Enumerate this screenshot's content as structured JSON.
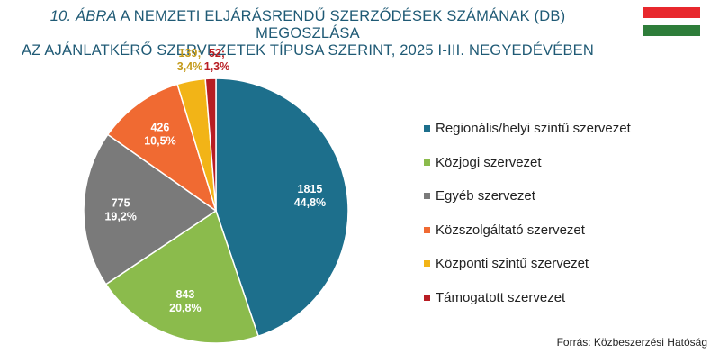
{
  "header": {
    "title_num": "10. ÁBRA",
    "title_line1_rest": " A NEMZETI ELJÁRÁSRENDŰ SZERZŐDÉSEK SZÁMÁNAK (DB) MEGOSZLÁSA",
    "title_line2": "AZ AJÁNLATKÉRŐ SZERVEZETEK TÍPUSA SZERINT, 2025 I-III. NEGYEDÉVÉBEN"
  },
  "flag": {
    "colors": [
      "#e8282d",
      "#ffffff",
      "#2e7d3a"
    ]
  },
  "chart_data": {
    "type": "pie",
    "title": "10. ÁBRA A NEMZETI ELJÁRÁSRENDŰ SZERZŐDÉSEK SZÁMÁNAK (DB) MEGOSZLÁSA AZ AJÁNLATKÉRŐ SZERVEZETEK TÍPUSA SZERINT, 2025 I-III. NEGYEDÉVÉBEN",
    "categories": [
      "Regionális/helyi szintű szervezet",
      "Közjogi szervezet",
      "Egyéb szervezet",
      "Közszolgáltató szervezet",
      "Központi szintű szervezet",
      "Támogatott szervezet"
    ],
    "values": [
      1815,
      843,
      775,
      426,
      139,
      52
    ],
    "percent_labels": [
      "44,8%",
      "20,8%",
      "19,2%",
      "10,5%",
      "3,4%",
      "1,3%"
    ],
    "value_labels": [
      "1815",
      "843",
      "775",
      "426",
      "139;",
      "52;"
    ],
    "colors": [
      "#1d6f8c",
      "#8bbb4c",
      "#7a7a7a",
      "#f06a32",
      "#f2b417",
      "#b81d23"
    ],
    "label_colors": [
      "#ffffff",
      "#ffffff",
      "#ffffff",
      "#ffffff",
      "#c49a1a",
      "#b81d23"
    ],
    "legend_position": "right"
  },
  "footer": {
    "source": "Forrás: Közbeszerzési Hatóság"
  }
}
